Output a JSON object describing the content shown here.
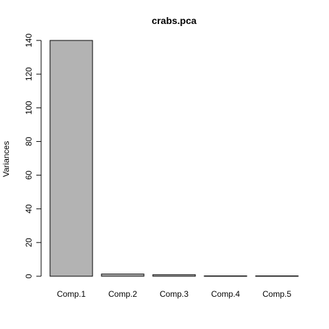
{
  "chart_data": {
    "type": "bar",
    "title": "crabs.pca",
    "xlabel": "",
    "ylabel": "Variances",
    "categories": [
      "Comp.1",
      "Comp.2",
      "Comp.3",
      "Comp.4",
      "Comp.5"
    ],
    "values": [
      140.0,
      1.3,
      0.9,
      0.2,
      0.04
    ],
    "ylim": [
      0,
      140
    ],
    "yticks": [
      "0",
      "20",
      "40",
      "60",
      "80",
      "100",
      "120",
      "140"
    ],
    "grid": false,
    "legend": "none",
    "bar_color": "#b3b3b3",
    "edge_color": "#000000"
  }
}
